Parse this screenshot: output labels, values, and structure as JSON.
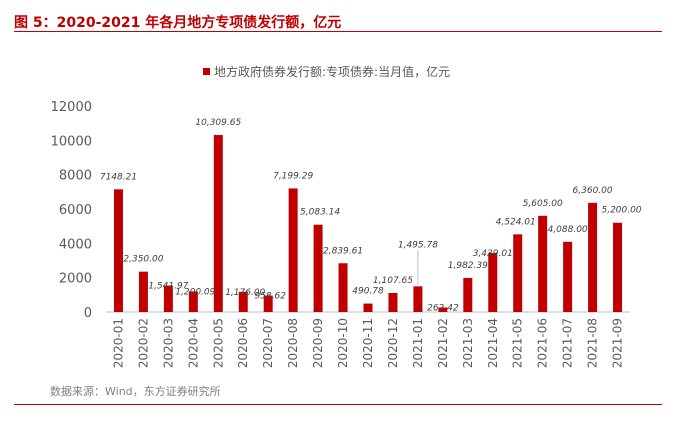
{
  "figure": {
    "title": "图 5：2020-2021 年各月地方专项债发行额，亿元",
    "source": "数据来源：Wind，东方证券研究所"
  },
  "colors": {
    "accent": "#c00000",
    "bar": "#c00000",
    "axis_text": "#595959",
    "label_text": "#404040"
  },
  "chart_data": {
    "type": "bar",
    "title": "",
    "legend": [
      "地方政府债券发行额:专项债券:当月值，亿元"
    ],
    "xlabel": "",
    "ylabel": "",
    "ylim": [
      0,
      12000
    ],
    "yticks": [
      0,
      2000,
      4000,
      6000,
      8000,
      10000,
      12000
    ],
    "yticks_label": [
      "0",
      "2000",
      "4000",
      "6000",
      "8000",
      "10000",
      "12000"
    ],
    "grid": false,
    "categories": [
      "2020-01",
      "2020-02",
      "2020-03",
      "2020-04",
      "2020-05",
      "2020-06",
      "2020-07",
      "2020-08",
      "2020-09",
      "2020-10",
      "2020-11",
      "2020-12",
      "2021-01",
      "2021-02",
      "2021-03",
      "2021-04",
      "2021-05",
      "2021-06",
      "2021-07",
      "2021-08",
      "2021-09"
    ],
    "values": [
      7148.21,
      2350.0,
      1541.97,
      1200.09,
      10309.65,
      1176.0,
      958.62,
      7199.29,
      5083.14,
      2839.61,
      490.78,
      1107.65,
      1495.78,
      262.42,
      1982.39,
      3439.01,
      4524.01,
      5605.0,
      4088.0,
      6360.0,
      5200.0
    ],
    "data_labels": [
      "7148.21",
      "2,350.00",
      "1,541.97",
      "1,200.09",
      "10,309.65",
      "1,176.00",
      "958.62",
      "7,199.29",
      "5,083.14",
      "2,839.61",
      "490.78",
      "1,107.65",
      "1,495.78",
      "262.42",
      "1,982.39",
      "3,439.01",
      "4,524.01",
      "5,605.00",
      "4,088.00",
      "6,360.00",
      "5,200.00"
    ]
  }
}
